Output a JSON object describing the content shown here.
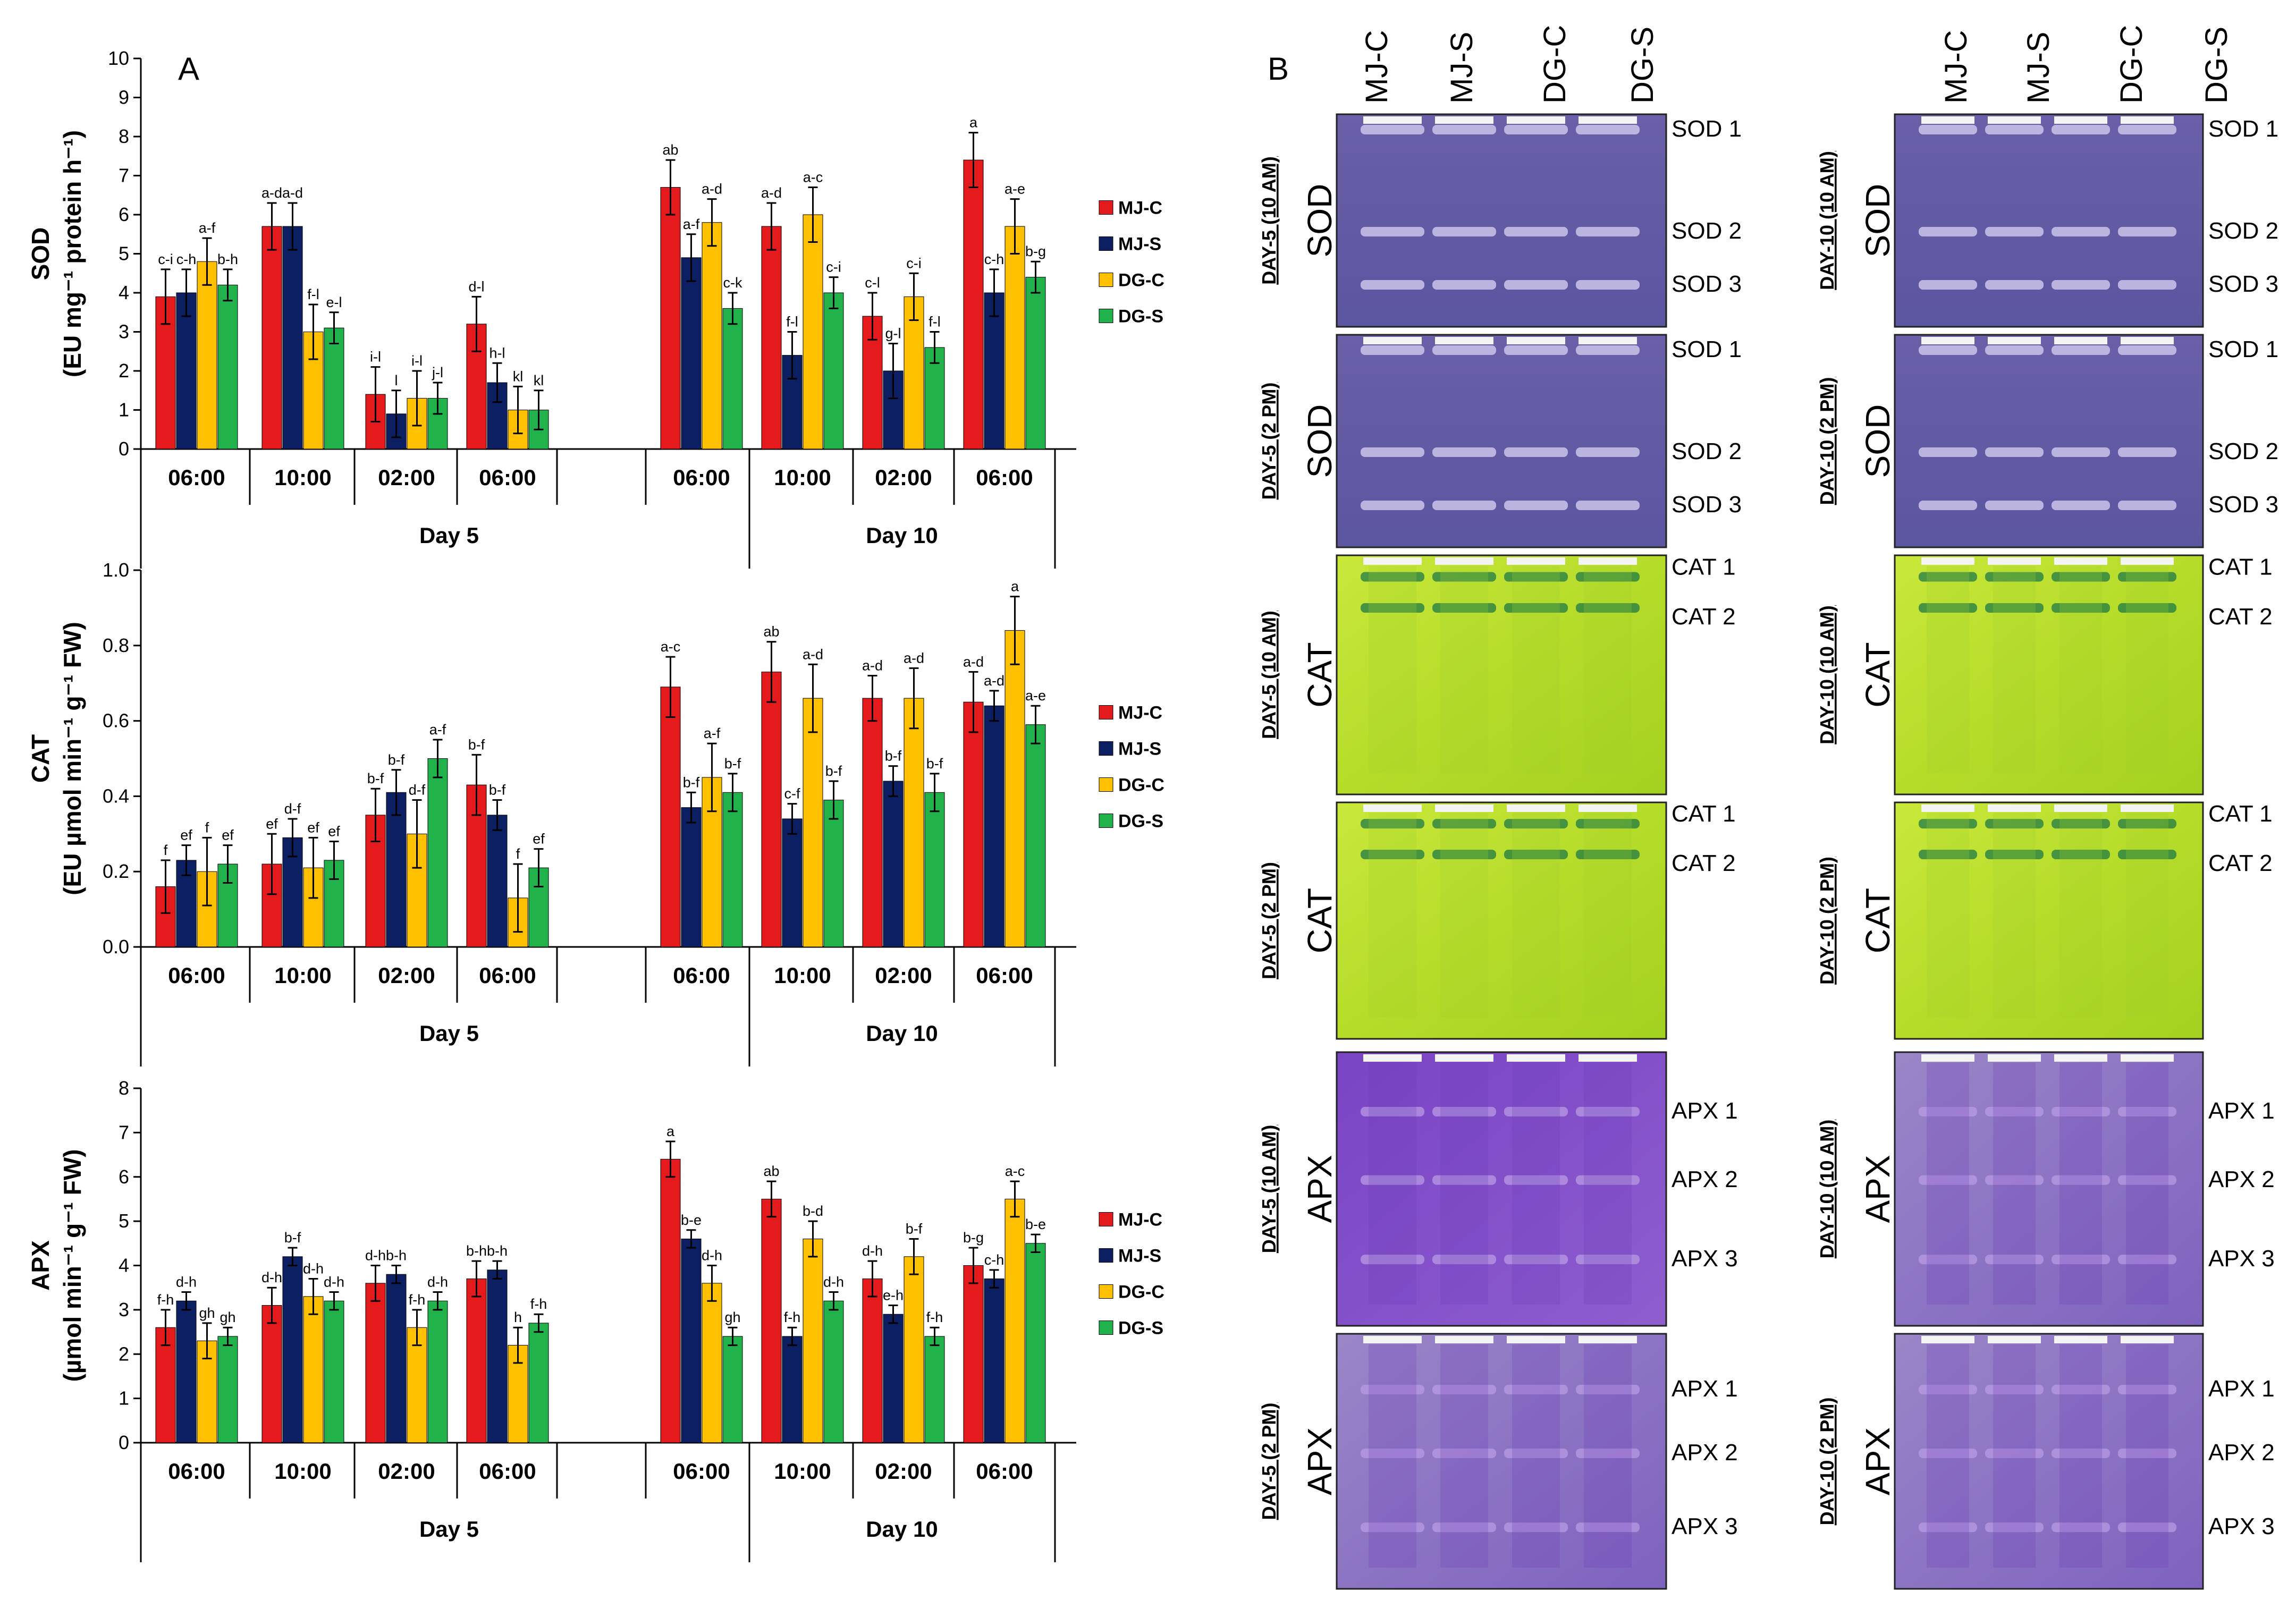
{
  "panel_a_label": "A",
  "panel_b_label": "B",
  "legend": [
    {
      "label": "MJ-C",
      "color": "#e41a1c"
    },
    {
      "label": "MJ-S",
      "color": "#0d1f63"
    },
    {
      "label": "DG-C",
      "color": "#ffc000"
    },
    {
      "label": "DG-S",
      "color": "#22b24c"
    }
  ],
  "chart_data": [
    {
      "type": "bar",
      "ylabel_line1": "SOD",
      "ylabel_line2": "(EU mg⁻¹ protein h⁻¹)",
      "ylim": [
        0,
        10
      ],
      "yticks": [
        "0",
        "1",
        "2",
        "3",
        "4",
        "5",
        "6",
        "7",
        "8",
        "9",
        "10"
      ],
      "groups": [
        "Day 5",
        "Day 10"
      ],
      "categories": [
        "06:00",
        "10:00",
        "02:00",
        "06:00",
        "06:00",
        "10:00",
        "02:00",
        "06:00"
      ],
      "series": [
        {
          "name": "MJ-C",
          "values": [
            3.9,
            5.7,
            1.4,
            3.2,
            6.7,
            5.7,
            3.4,
            7.4
          ],
          "errors": [
            0.7,
            0.6,
            0.7,
            0.7,
            0.7,
            0.6,
            0.6,
            0.7
          ],
          "letters": [
            "c-i",
            "a-d",
            "i-l",
            "d-l",
            "ab",
            "a-d",
            "c-l",
            "a"
          ]
        },
        {
          "name": "MJ-S",
          "values": [
            4.0,
            5.7,
            0.9,
            1.7,
            4.9,
            2.4,
            2.0,
            4.0
          ],
          "errors": [
            0.6,
            0.6,
            0.6,
            0.5,
            0.6,
            0.6,
            0.7,
            0.6
          ],
          "letters": [
            "c-h",
            "a-d",
            "l",
            "h-l",
            "a-f",
            "f-l",
            "g-l",
            "c-h"
          ]
        },
        {
          "name": "DG-C",
          "values": [
            4.8,
            3.0,
            1.3,
            1.0,
            5.8,
            6.0,
            3.9,
            5.7
          ],
          "errors": [
            0.6,
            0.7,
            0.7,
            0.6,
            0.6,
            0.7,
            0.6,
            0.7
          ],
          "letters": [
            "a-f",
            "f-l",
            "i-l",
            "kl",
            "a-d",
            "a-c",
            "c-i",
            "a-e"
          ]
        },
        {
          "name": "DG-S",
          "values": [
            4.2,
            3.1,
            1.3,
            1.0,
            3.6,
            4.0,
            2.6,
            4.4
          ],
          "errors": [
            0.4,
            0.4,
            0.4,
            0.5,
            0.4,
            0.4,
            0.4,
            0.4
          ],
          "letters": [
            "b-h",
            "e-l",
            "j-l",
            "kl",
            "c-k",
            "c-i",
            "f-l",
            "b-g"
          ]
        }
      ]
    },
    {
      "type": "bar",
      "ylabel_line1": "CAT",
      "ylabel_line2": "(EU µmol min⁻¹ g⁻¹ FW)",
      "ylim": [
        0,
        1.0
      ],
      "yticks": [
        "0.0",
        "0.2",
        "0.4",
        "0.6",
        "0.8",
        "1.0"
      ],
      "groups": [
        "Day 5",
        "Day 10"
      ],
      "categories": [
        "06:00",
        "10:00",
        "02:00",
        "06:00",
        "06:00",
        "10:00",
        "02:00",
        "06:00"
      ],
      "series": [
        {
          "name": "MJ-C",
          "values": [
            0.16,
            0.22,
            0.35,
            0.43,
            0.69,
            0.73,
            0.66,
            0.65
          ],
          "errors": [
            0.07,
            0.08,
            0.07,
            0.08,
            0.08,
            0.08,
            0.06,
            0.08
          ],
          "letters": [
            "f",
            "ef",
            "b-f",
            "b-f",
            "a-c",
            "ab",
            "a-d",
            "a-d"
          ]
        },
        {
          "name": "MJ-S",
          "values": [
            0.23,
            0.29,
            0.41,
            0.35,
            0.37,
            0.34,
            0.44,
            0.64
          ],
          "errors": [
            0.04,
            0.05,
            0.06,
            0.04,
            0.04,
            0.04,
            0.04,
            0.04
          ],
          "letters": [
            "ef",
            "d-f",
            "b-f",
            "b-f",
            "b-f",
            "c-f",
            "b-f",
            "a-d"
          ]
        },
        {
          "name": "DG-C",
          "values": [
            0.2,
            0.21,
            0.3,
            0.13,
            0.45,
            0.66,
            0.66,
            0.84
          ],
          "errors": [
            0.09,
            0.08,
            0.09,
            0.09,
            0.09,
            0.09,
            0.08,
            0.09
          ],
          "letters": [
            "f",
            "ef",
            "d-f",
            "f",
            "a-f",
            "a-d",
            "a-d",
            "a"
          ]
        },
        {
          "name": "DG-S",
          "values": [
            0.22,
            0.23,
            0.5,
            0.21,
            0.41,
            0.39,
            0.41,
            0.59
          ],
          "errors": [
            0.05,
            0.05,
            0.05,
            0.05,
            0.05,
            0.05,
            0.05,
            0.05
          ],
          "letters": [
            "ef",
            "ef",
            "a-f",
            "ef",
            "b-f",
            "b-f",
            "b-f",
            "a-e"
          ]
        }
      ]
    },
    {
      "type": "bar",
      "ylabel_line1": "APX",
      "ylabel_line2": "(µmol min⁻¹ g⁻¹ FW)",
      "ylim": [
        0,
        8
      ],
      "yticks": [
        "0",
        "1",
        "2",
        "3",
        "4",
        "5",
        "6",
        "7",
        "8"
      ],
      "groups": [
        "Day 5",
        "Day 10"
      ],
      "categories": [
        "06:00",
        "10:00",
        "02:00",
        "06:00",
        "06:00",
        "10:00",
        "02:00",
        "06:00"
      ],
      "series": [
        {
          "name": "MJ-C",
          "values": [
            2.6,
            3.1,
            3.6,
            3.7,
            6.4,
            5.5,
            3.7,
            4.0
          ],
          "errors": [
            0.4,
            0.4,
            0.4,
            0.4,
            0.4,
            0.4,
            0.4,
            0.4
          ],
          "letters": [
            "f-h",
            "d-h",
            "d-h",
            "b-h",
            "a",
            "ab",
            "d-h",
            "b-g"
          ]
        },
        {
          "name": "MJ-S",
          "values": [
            3.2,
            4.2,
            3.8,
            3.9,
            4.6,
            2.4,
            2.9,
            3.7
          ],
          "errors": [
            0.2,
            0.2,
            0.2,
            0.2,
            0.2,
            0.2,
            0.2,
            0.2
          ],
          "letters": [
            "d-h",
            "b-f",
            "b-h",
            "b-h",
            "b-e",
            "f-h",
            "e-h",
            "c-h"
          ]
        },
        {
          "name": "DG-C",
          "values": [
            2.3,
            3.3,
            2.6,
            2.2,
            3.6,
            4.6,
            4.2,
            5.5
          ],
          "errors": [
            0.4,
            0.4,
            0.4,
            0.4,
            0.4,
            0.4,
            0.4,
            0.4
          ],
          "letters": [
            "gh",
            "d-h",
            "f-h",
            "h",
            "d-h",
            "b-d",
            "b-f",
            "a-c"
          ]
        },
        {
          "name": "DG-S",
          "values": [
            2.4,
            3.2,
            3.2,
            2.7,
            2.4,
            3.2,
            2.4,
            4.5
          ],
          "errors": [
            0.2,
            0.2,
            0.2,
            0.2,
            0.2,
            0.2,
            0.2,
            0.2
          ],
          "letters": [
            "gh",
            "d-h",
            "d-h",
            "f-h",
            "gh",
            "d-h",
            "f-h",
            "b-e"
          ]
        }
      ]
    }
  ],
  "gels": {
    "left_lanes": [
      "MJ-C",
      "MJ-S",
      "DG-C",
      "DG-S"
    ],
    "right_lanes": [
      "MJ-C",
      "MJ-S",
      "DG-C",
      "DG-S"
    ],
    "left": [
      {
        "day": "DAY-5 (10 AM)",
        "enzyme": "SOD",
        "bands": [
          "SOD 1",
          "SOD 2",
          "SOD 3"
        ]
      },
      {
        "day": "DAY-5 (2 PM)",
        "enzyme": "SOD",
        "bands": [
          "SOD 1",
          "SOD 2",
          "SOD 3"
        ]
      },
      {
        "day": "DAY-5 (10 AM)",
        "enzyme": "CAT",
        "bands": [
          "CAT 1",
          "CAT 2"
        ]
      },
      {
        "day": "DAY-5 (2 PM)",
        "enzyme": "CAT",
        "bands": [
          "CAT 1",
          "CAT 2"
        ]
      },
      {
        "day": "DAY-5 (10 AM)",
        "enzyme": "APX",
        "bands": [
          "APX 1",
          "APX 2",
          "APX 3"
        ]
      },
      {
        "day": "DAY-5 (2 PM)",
        "enzyme": "APX",
        "bands": [
          "APX 1",
          "APX 2",
          "APX 3"
        ]
      }
    ],
    "right": [
      {
        "day": "DAY-10 (10 AM)",
        "enzyme": "SOD",
        "bands": [
          "SOD 1",
          "SOD 2",
          "SOD 3"
        ]
      },
      {
        "day": "DAY-10 (2 PM)",
        "enzyme": "SOD",
        "bands": [
          "SOD 1",
          "SOD 2",
          "SOD 3"
        ]
      },
      {
        "day": "DAY-10 (10 AM)",
        "enzyme": "CAT",
        "bands": [
          "CAT 1",
          "CAT 2"
        ]
      },
      {
        "day": "DAY-10 (2 PM)",
        "enzyme": "CAT",
        "bands": [
          "CAT 1",
          "CAT 2"
        ]
      },
      {
        "day": "DAY-10 (10 AM)",
        "enzyme": "APX",
        "bands": [
          "APX 1",
          "APX 2",
          "APX 3"
        ]
      },
      {
        "day": "DAY-10 (2 PM)",
        "enzyme": "APX",
        "bands": [
          "APX 1",
          "APX 2",
          "APX 3"
        ]
      }
    ]
  }
}
